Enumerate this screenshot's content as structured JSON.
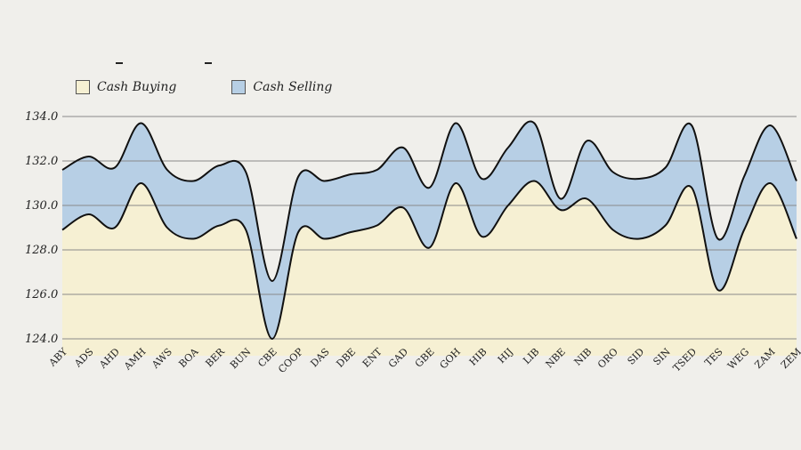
{
  "chart_data": {
    "type": "area",
    "title": "",
    "xlabel": "",
    "ylabel": "",
    "ylim": [
      124,
      134
    ],
    "yticks": [
      "124.0",
      "126.0",
      "128.0",
      "130.0",
      "132.0",
      "134.0"
    ],
    "categories": [
      "ABY",
      "ADS",
      "AHD",
      "AMH",
      "AWS",
      "BOA",
      "BER",
      "BUN",
      "CBE",
      "COOP",
      "DAS",
      "DBE",
      "ENT",
      "GAD",
      "GBE",
      "GOH",
      "HIB",
      "HIJ",
      "LIB",
      "NBE",
      "NIB",
      "ORO",
      "SID",
      "SIN",
      "TSED",
      "TES",
      "WEG",
      "ZAM",
      "ZEM"
    ],
    "series": [
      {
        "name": "Cash Buying",
        "color": "#f6f0d3",
        "values": [
          128.9,
          129.6,
          129.0,
          131.0,
          129.0,
          128.5,
          129.1,
          128.9,
          124.0,
          128.8,
          128.5,
          128.8,
          129.1,
          129.9,
          128.1,
          131.0,
          128.6,
          130.0,
          131.1,
          129.8,
          130.3,
          128.9,
          128.5,
          129.1,
          130.8,
          126.2,
          128.9,
          131.0,
          128.5
        ]
      },
      {
        "name": "Cash Selling",
        "color": "#b7cfe5",
        "values": [
          131.6,
          132.2,
          131.7,
          133.7,
          131.6,
          131.1,
          131.8,
          131.5,
          126.6,
          131.3,
          131.1,
          131.4,
          131.6,
          132.6,
          130.8,
          133.7,
          131.2,
          132.6,
          133.7,
          130.3,
          132.9,
          131.5,
          131.2,
          131.7,
          133.6,
          128.5,
          131.3,
          133.6,
          131.1
        ]
      }
    ],
    "legend": "top-left",
    "grid": true
  }
}
